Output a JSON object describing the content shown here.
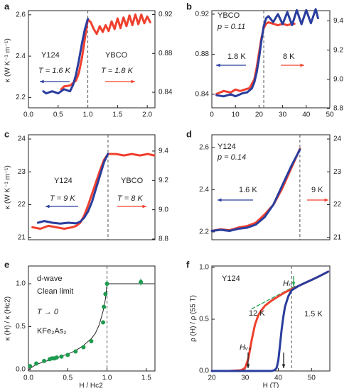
{
  "chart_data": [
    {
      "type": "line",
      "panel": "a",
      "ylabel": "κ (W K⁻¹ m⁻¹)",
      "xlim": [
        0,
        2.13
      ],
      "xticks": [
        {
          "value": 0,
          "label": "0.0"
        },
        0.5,
        {
          "value": 1,
          "label": "1.0"
        },
        1.5,
        {
          "value": 2,
          "label": "2.0"
        }
      ],
      "ylim": [
        2.15,
        2.62
      ],
      "yticks": [
        2.2,
        2.4,
        2.6
      ],
      "y2lim": [
        0.824,
        0.924
      ],
      "y2ticks": [
        0.84,
        0.88,
        0.92
      ],
      "vline": 1.0,
      "annotations": [
        "Y124",
        "T = 1.6 K",
        "YBCO",
        "T = 1.8 K"
      ],
      "series": [
        {
          "color": "#f0402e",
          "axis": "y2",
          "x": [
            0.55,
            0.6,
            0.7,
            0.8,
            0.85,
            0.9,
            0.95,
            1.0,
            1.05,
            1.1,
            1.15,
            1.2,
            1.25,
            1.3,
            1.35,
            1.4,
            1.45,
            1.5,
            1.55,
            1.6,
            1.65,
            1.7,
            1.75,
            1.8,
            1.85,
            1.9,
            1.95,
            2.0,
            2.05
          ],
          "values": [
            0.843,
            0.846,
            0.847,
            0.852,
            0.86,
            0.875,
            0.895,
            0.915,
            0.912,
            0.905,
            0.9,
            0.908,
            0.902,
            0.909,
            0.903,
            0.913,
            0.905,
            0.916,
            0.906,
            0.917,
            0.908,
            0.919,
            0.909,
            0.92,
            0.91,
            0.92,
            0.911,
            0.918,
            0.912
          ]
        },
        {
          "color": "#2a3d9e",
          "axis": "y",
          "x": [
            0.25,
            0.3,
            0.4,
            0.5,
            0.6,
            0.7,
            0.75,
            0.8,
            0.85,
            0.9,
            0.95,
            1.0
          ],
          "values": [
            2.23,
            2.22,
            2.23,
            2.22,
            2.24,
            2.23,
            2.26,
            2.31,
            2.38,
            2.46,
            2.53,
            2.58
          ]
        }
      ]
    },
    {
      "type": "line",
      "panel": "b",
      "xlim": [
        0,
        50
      ],
      "xticks": [
        0,
        10,
        20,
        30,
        40,
        50
      ],
      "ylim": [
        0.8265,
        0.9235
      ],
      "yticks": [
        0.84,
        0.88,
        0.92
      ],
      "y2lim": [
        8.805,
        9.47
      ],
      "y2ticks": [
        8.8,
        {
          "value": 9,
          "label": "9.0"
        },
        9.2,
        9.4
      ],
      "vline": 22,
      "annotations": [
        "YBCO",
        "p = 0.11",
        "1.8 K",
        "8 K"
      ],
      "series": [
        {
          "color": "#f0402e",
          "axis": "y2",
          "x": [
            2,
            5,
            8,
            10,
            12,
            14,
            16,
            18,
            19,
            20,
            21,
            22,
            23,
            24,
            26,
            28,
            30,
            32,
            34,
            35
          ],
          "values": [
            8.9,
            8.92,
            8.91,
            8.93,
            8.92,
            8.93,
            8.94,
            9.0,
            9.08,
            9.18,
            9.28,
            9.35,
            9.38,
            9.39,
            9.38,
            9.37,
            9.38,
            9.37,
            9.38,
            9.38
          ]
        },
        {
          "color": "#2a3d9e",
          "axis": "y",
          "x": [
            2,
            5,
            8,
            10,
            13,
            15,
            17,
            18,
            19,
            20,
            21,
            22,
            23,
            24,
            26,
            28,
            30,
            32,
            34,
            36,
            38,
            40,
            42,
            44,
            45
          ],
          "values": [
            0.839,
            0.838,
            0.84,
            0.838,
            0.841,
            0.842,
            0.846,
            0.852,
            0.862,
            0.876,
            0.893,
            0.908,
            0.916,
            0.918,
            0.912,
            0.92,
            0.91,
            0.922,
            0.909,
            0.924,
            0.91,
            0.924,
            0.911,
            0.925,
            0.916
          ]
        }
      ]
    },
    {
      "type": "line",
      "panel": "c",
      "ylabel": "κ (W K⁻¹ m⁻¹)",
      "xlim": [
        0,
        1.59
      ],
      "ylim": [
        20.93,
        24.13
      ],
      "yticks": [
        21,
        22,
        23,
        24
      ],
      "y2lim": [
        8.795,
        9.511
      ],
      "y2ticks": [
        8.8,
        {
          "value": 9,
          "label": "9.0"
        },
        9.2,
        9.4
      ],
      "vline": 1.0,
      "annotations": [
        "Y124",
        "T = 9 K",
        "YBCO",
        "T = 8 K"
      ],
      "series": [
        {
          "color": "#f0402e",
          "axis": "y2",
          "x": [
            0.05,
            0.15,
            0.25,
            0.35,
            0.45,
            0.55,
            0.6,
            0.65,
            0.7,
            0.75,
            0.8,
            0.85,
            0.9,
            0.95,
            1.0,
            1.1,
            1.2,
            1.3,
            1.4,
            1.5,
            1.58
          ],
          "values": [
            8.88,
            8.87,
            8.89,
            8.88,
            8.87,
            8.88,
            8.89,
            8.91,
            8.96,
            9.03,
            9.11,
            9.19,
            9.27,
            9.34,
            9.38,
            9.38,
            9.37,
            9.38,
            9.37,
            9.38,
            9.37
          ]
        },
        {
          "color": "#2a3d9e",
          "axis": "y",
          "x": [
            0.12,
            0.2,
            0.3,
            0.4,
            0.5,
            0.6,
            0.65,
            0.7,
            0.75,
            0.8,
            0.85,
            0.9,
            0.95,
            1.0
          ],
          "values": [
            21.45,
            21.5,
            21.45,
            21.42,
            21.45,
            21.43,
            21.48,
            21.6,
            21.8,
            22.1,
            22.5,
            22.9,
            23.3,
            23.55
          ]
        }
      ]
    },
    {
      "type": "line",
      "panel": "d",
      "xlim": [
        0,
        1.34
      ],
      "ylim": [
        2.163,
        2.66
      ],
      "yticks": [
        2.2,
        2.4,
        2.6
      ],
      "y2lim": [
        20.93,
        24.13
      ],
      "y2ticks": [
        21,
        22,
        23,
        24
      ],
      "vline": 1.0,
      "annotations": [
        "Y124",
        "p = 0.14",
        "1.6 K",
        "9 K"
      ],
      "series": [
        {
          "color": "#f0402e",
          "axis": "y2",
          "x": [
            0.0,
            0.1,
            0.2,
            0.3,
            0.4,
            0.5,
            0.6,
            0.7,
            0.8,
            0.9,
            1.0
          ],
          "values": [
            21.2,
            21.25,
            21.22,
            21.3,
            21.35,
            21.45,
            21.7,
            22.0,
            22.5,
            23.1,
            23.7
          ]
        },
        {
          "color": "#2a3d9e",
          "axis": "y",
          "x": [
            0.0,
            0.1,
            0.2,
            0.3,
            0.4,
            0.5,
            0.6,
            0.7,
            0.8,
            0.9,
            1.0
          ],
          "values": [
            2.205,
            2.21,
            2.205,
            2.215,
            2.22,
            2.235,
            2.27,
            2.33,
            2.42,
            2.51,
            2.59
          ]
        }
      ]
    },
    {
      "type": "scatter",
      "panel": "e",
      "ylabel": "κ (H) / κ (Hc2)",
      "xlabel": "H / Hc2",
      "xlim": [
        0,
        1.61
      ],
      "xticks": [
        {
          "value": 0,
          "label": "0.0"
        },
        0.5,
        {
          "value": 1,
          "label": "1.0"
        },
        1.5
      ],
      "ylim": [
        -0.017,
        1.207
      ],
      "yticks": [
        {
          "value": 0,
          "label": "0.0"
        },
        0.5,
        {
          "value": 1,
          "label": "1.0"
        }
      ],
      "vline": 1.0,
      "annotations": [
        "d-wave",
        "Clean limit",
        "T → 0",
        "KFe₂As₂"
      ],
      "series": [
        {
          "color": "#222222",
          "x": [
            0,
            0.1,
            0.2,
            0.3,
            0.4,
            0.5,
            0.6,
            0.7,
            0.8,
            0.85,
            0.9,
            0.95,
            0.98,
            1.0,
            1.6
          ],
          "values": [
            0.0,
            0.06,
            0.09,
            0.12,
            0.15,
            0.18,
            0.22,
            0.28,
            0.36,
            0.42,
            0.52,
            0.68,
            0.82,
            1.0,
            1.0
          ]
        },
        {
          "color": "#1e9b4e",
          "markers": true,
          "x": [
            0.02,
            0.1,
            0.2,
            0.27,
            0.3,
            0.33,
            0.36,
            0.42,
            0.5,
            0.6,
            0.7,
            0.8,
            0.95,
            0.96,
            0.98,
            1.0,
            1.43
          ],
          "values": [
            0.04,
            0.07,
            0.1,
            0.12,
            0.13,
            0.13,
            0.14,
            0.15,
            0.17,
            0.21,
            0.26,
            0.33,
            0.55,
            0.73,
            0.88,
            1.0,
            1.02
          ],
          "errors": [
            null,
            null,
            null,
            null,
            null,
            null,
            null,
            null,
            null,
            null,
            null,
            null,
            null,
            null,
            null,
            0.04,
            0.04
          ]
        }
      ]
    },
    {
      "type": "line",
      "panel": "f",
      "ylabel": "ρ (H) / ρ (55 T)",
      "xlabel": "H (T)",
      "xlim": [
        20,
        55.5
      ],
      "xticks": [
        20,
        30,
        40,
        50
      ],
      "ylim": [
        0,
        1.014
      ],
      "yticks": [
        {
          "value": 0,
          "label": "0.0"
        },
        0.5,
        {
          "value": 1,
          "label": "1.0"
        }
      ],
      "vline": 44,
      "annotations": [
        "Y124",
        "Hₙ",
        "12 K",
        "1.5 K",
        "Hᵥₛ"
      ],
      "series": [
        {
          "color": "#1e9b4e",
          "dash": true,
          "x": [
            32,
            45
          ],
          "values": [
            0.6,
            0.82
          ]
        },
        {
          "color": "#f0402e",
          "x": [
            20,
            25,
            28,
            29,
            30,
            31,
            32,
            33,
            34,
            35,
            36,
            38,
            40,
            42,
            44,
            46,
            48,
            50,
            52,
            55
          ],
          "values": [
            0,
            0,
            0.005,
            0.01,
            0.03,
            0.12,
            0.3,
            0.45,
            0.54,
            0.59,
            0.63,
            0.68,
            0.72,
            0.76,
            0.79,
            0.82,
            0.85,
            0.88,
            0.91,
            0.96
          ]
        },
        {
          "color": "#2a3d9e",
          "x": [
            20,
            30,
            35,
            38,
            39,
            39.5,
            40,
            40.5,
            41,
            41.5,
            42,
            43,
            44,
            46,
            48,
            50,
            52,
            55
          ],
          "values": [
            0,
            0,
            0,
            0,
            0.01,
            0.03,
            0.1,
            0.25,
            0.4,
            0.52,
            0.62,
            0.72,
            0.78,
            0.82,
            0.85,
            0.88,
            0.91,
            0.96
          ]
        }
      ]
    }
  ]
}
